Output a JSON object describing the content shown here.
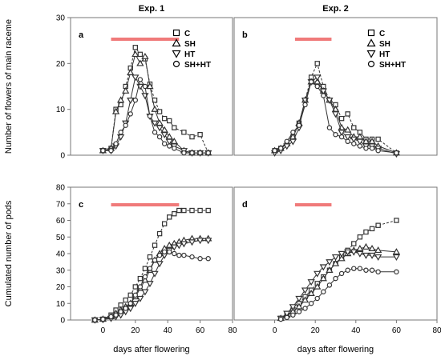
{
  "chart_data": [
    {
      "panel": "a",
      "title": "Exp. 1",
      "type": "line",
      "ylabel": "Number of flowers of main raceme",
      "xlabel": "",
      "xlim": [
        -20,
        80
      ],
      "ylim": [
        0,
        30
      ],
      "yticks": [
        0,
        10,
        20,
        30
      ],
      "xticks": [],
      "treatment_bar": [
        5,
        47
      ],
      "legend": [
        "C",
        "SH",
        "HT",
        "SH+HT"
      ],
      "series": [
        {
          "name": "C",
          "marker": "square",
          "x": [
            0,
            5,
            8,
            11,
            14,
            17,
            20,
            23,
            26,
            29,
            32,
            35,
            38,
            41,
            44,
            50,
            55,
            60,
            65
          ],
          "y": [
            1,
            1.5,
            10,
            11,
            15,
            19,
            23.5,
            22,
            21,
            15.5,
            12,
            9.5,
            8,
            7.5,
            6,
            5,
            4,
            4.5,
            0.5
          ]
        },
        {
          "name": "SH",
          "marker": "triangle-up",
          "x": [
            0,
            5,
            8,
            11,
            14,
            17,
            20,
            23,
            26,
            29,
            32,
            35,
            38,
            41,
            44,
            50,
            55,
            60,
            65
          ],
          "y": [
            1,
            1.5,
            9.5,
            12,
            14,
            18,
            22,
            20,
            21.5,
            15,
            10,
            7,
            5.5,
            4,
            3,
            1,
            0.5,
            0.5,
            0.5
          ]
        },
        {
          "name": "HT",
          "marker": "triangle-down",
          "x": [
            0,
            5,
            8,
            11,
            14,
            17,
            20,
            23,
            26,
            29,
            32,
            35,
            38,
            41,
            44,
            50,
            55,
            60,
            65
          ],
          "y": [
            1,
            1,
            2,
            4,
            7,
            12,
            17,
            15,
            13,
            8.5,
            7,
            6,
            4.5,
            3,
            2,
            1,
            0.5,
            0.5,
            0.5
          ]
        },
        {
          "name": "SH+HT",
          "marker": "circle",
          "x": [
            0,
            5,
            8,
            11,
            14,
            17,
            20,
            23,
            26,
            29,
            32,
            35,
            38,
            41,
            44,
            50,
            55,
            60,
            65
          ],
          "y": [
            1,
            1,
            2.5,
            5,
            6.5,
            9,
            12,
            16.5,
            15,
            8.5,
            5,
            4,
            2.5,
            2,
            1.5,
            0.5,
            0.5,
            0.5,
            0.5
          ]
        }
      ]
    },
    {
      "panel": "b",
      "title": "Exp. 2",
      "type": "line",
      "ylabel": "",
      "xlabel": "",
      "xlim": [
        -20,
        80
      ],
      "ylim": [
        0,
        30
      ],
      "yticks": [],
      "xticks": [],
      "treatment_bar": [
        10,
        28
      ],
      "legend": [
        "C",
        "SH",
        "HT",
        "SH+HT"
      ],
      "series": [
        {
          "name": "C",
          "marker": "square",
          "x": [
            0,
            3,
            6,
            9,
            12,
            15,
            18,
            21,
            24,
            27,
            30,
            33,
            36,
            39,
            42,
            45,
            48,
            51,
            60
          ],
          "y": [
            1,
            1.5,
            2.5,
            4,
            7,
            12,
            17,
            20,
            15,
            12,
            11,
            8,
            9,
            6,
            5,
            3.5,
            3.5,
            3.5,
            0.5
          ]
        },
        {
          "name": "SH",
          "marker": "triangle-up",
          "x": [
            0,
            3,
            6,
            9,
            12,
            15,
            18,
            21,
            24,
            27,
            30,
            33,
            36,
            39,
            42,
            45,
            48,
            51,
            60
          ],
          "y": [
            1,
            1.5,
            2.5,
            4,
            7,
            12,
            16,
            16,
            14,
            12,
            10,
            6,
            5.5,
            4,
            4,
            3,
            3,
            2,
            0.5
          ]
        },
        {
          "name": "HT",
          "marker": "triangle-down",
          "x": [
            0,
            3,
            6,
            9,
            12,
            15,
            18,
            21,
            24,
            27,
            30,
            33,
            36,
            39,
            42,
            45,
            48,
            51,
            60
          ],
          "y": [
            0.5,
            1,
            2,
            3,
            6,
            12,
            16,
            17,
            14,
            12,
            9,
            5,
            4,
            3.5,
            3,
            2,
            2,
            1.5,
            0.3
          ]
        },
        {
          "name": "SH+HT",
          "marker": "circle",
          "x": [
            0,
            3,
            6,
            9,
            12,
            15,
            18,
            21,
            24,
            27,
            30,
            33,
            36,
            39,
            42,
            45,
            48,
            51,
            60
          ],
          "y": [
            1,
            1.5,
            3,
            5,
            6.5,
            11,
            16,
            15,
            13,
            6,
            4.5,
            4,
            3,
            2.5,
            2,
            1.5,
            1.5,
            1,
            0.5
          ]
        }
      ]
    },
    {
      "panel": "c",
      "title": "",
      "type": "line",
      "ylabel": "Cumulated number of pods",
      "xlabel": "days after flowering",
      "xlim": [
        -20,
        80
      ],
      "ylim": [
        0,
        80
      ],
      "yticks": [
        0,
        10,
        20,
        30,
        40,
        50,
        60,
        70,
        80
      ],
      "xticks": [
        0,
        20,
        40,
        60,
        80
      ],
      "treatment_bar": [
        5,
        47
      ],
      "legend": [],
      "series": [
        {
          "name": "C",
          "marker": "square",
          "x": [
            -5,
            0,
            5,
            8,
            11,
            14,
            17,
            20,
            23,
            26,
            29,
            32,
            35,
            38,
            41,
            44,
            47,
            50,
            55,
            60,
            65
          ],
          "y": [
            0,
            0.5,
            3,
            6,
            9,
            12,
            15,
            20,
            25,
            31,
            38,
            45,
            52,
            58,
            62,
            64,
            66,
            66,
            66,
            66,
            66
          ]
        },
        {
          "name": "SH",
          "marker": "triangle-up",
          "x": [
            -5,
            0,
            5,
            8,
            11,
            14,
            17,
            20,
            23,
            26,
            29,
            32,
            35,
            38,
            41,
            44,
            47,
            50,
            55,
            60,
            65
          ],
          "y": [
            0,
            0.5,
            2,
            4,
            6,
            8,
            10,
            14,
            19,
            24,
            30,
            36,
            40,
            43,
            45,
            46,
            47,
            48,
            49,
            49,
            49
          ]
        },
        {
          "name": "HT",
          "marker": "triangle-down",
          "x": [
            -5,
            0,
            5,
            8,
            11,
            14,
            17,
            20,
            23,
            26,
            29,
            32,
            35,
            38,
            41,
            44,
            47,
            50,
            55,
            60,
            65
          ],
          "y": [
            0,
            0.3,
            1,
            2,
            3,
            5,
            7,
            10,
            13,
            17,
            22,
            28,
            34,
            39,
            42,
            44,
            45,
            46,
            47,
            48,
            48
          ]
        },
        {
          "name": "SH+HT",
          "marker": "circle",
          "x": [
            -5,
            0,
            5,
            8,
            11,
            14,
            17,
            20,
            23,
            26,
            29,
            32,
            35,
            38,
            41,
            44,
            47,
            50,
            55,
            60,
            65
          ],
          "y": [
            0,
            0.5,
            2,
            3,
            5,
            7,
            10,
            15,
            20,
            26,
            31,
            36,
            39,
            41,
            41,
            40,
            39,
            39,
            38,
            37,
            37
          ]
        }
      ]
    },
    {
      "panel": "d",
      "title": "",
      "type": "line",
      "ylabel": "",
      "xlabel": "days after flowering",
      "xlim": [
        -20,
        80
      ],
      "ylim": [
        0,
        80
      ],
      "yticks": [],
      "xticks": [
        0,
        20,
        40,
        60,
        80
      ],
      "treatment_bar": [
        10,
        28
      ],
      "legend": [],
      "series": [
        {
          "name": "C",
          "marker": "square",
          "x": [
            3,
            6,
            9,
            12,
            15,
            18,
            21,
            24,
            27,
            30,
            33,
            36,
            39,
            42,
            45,
            48,
            51,
            60
          ],
          "y": [
            1,
            3,
            6,
            10,
            14,
            18,
            22,
            26,
            30,
            34,
            38,
            42,
            46,
            50,
            53,
            55,
            57,
            60
          ]
        },
        {
          "name": "SH",
          "marker": "triangle-up",
          "x": [
            3,
            6,
            9,
            12,
            15,
            18,
            21,
            24,
            27,
            30,
            33,
            36,
            39,
            42,
            45,
            48,
            51,
            60
          ],
          "y": [
            1,
            3,
            5,
            8,
            12,
            16,
            20,
            25,
            30,
            34,
            37,
            40,
            42,
            43,
            44,
            43,
            42,
            41
          ]
        },
        {
          "name": "HT",
          "marker": "triangle-down",
          "x": [
            3,
            6,
            9,
            12,
            15,
            18,
            21,
            24,
            27,
            30,
            33,
            36,
            39,
            42,
            45,
            48,
            51,
            60
          ],
          "y": [
            1,
            4,
            8,
            13,
            18,
            23,
            28,
            32,
            35,
            38,
            40,
            41,
            41,
            40,
            39,
            39,
            38,
            38
          ]
        },
        {
          "name": "SH+HT",
          "marker": "circle",
          "x": [
            3,
            6,
            9,
            12,
            15,
            18,
            21,
            24,
            27,
            30,
            33,
            36,
            39,
            42,
            45,
            48,
            51,
            60
          ],
          "y": [
            0.5,
            1.5,
            3,
            5,
            7,
            10,
            13,
            17,
            21,
            25,
            28,
            30,
            31,
            31,
            30,
            30,
            29,
            29
          ]
        }
      ]
    }
  ],
  "colors": {
    "treatment_bar": "#f07a7a",
    "series_line": "#333333"
  }
}
